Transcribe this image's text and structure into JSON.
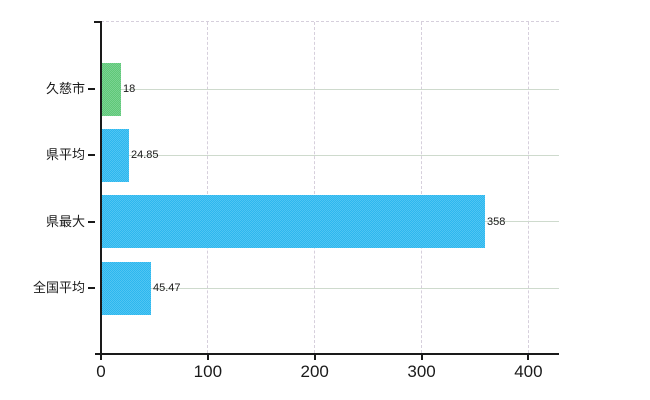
{
  "chart_data": {
    "type": "bar",
    "orientation": "horizontal",
    "title": "",
    "xlabel": "",
    "ylabel": "",
    "categories": [
      "久慈市",
      "県平均",
      "県最大",
      "全国平均"
    ],
    "values": [
      18,
      24.85,
      358,
      45.47
    ],
    "value_labels": [
      "18",
      "24.85",
      "358",
      "45.47"
    ],
    "bars": [
      {
        "category": "久慈市",
        "value": 18,
        "label": "18",
        "fill": "#5fc878",
        "fill_alt": "#7ad392"
      },
      {
        "category": "県平均",
        "value": 24.85,
        "label": "24.85",
        "fill": "#2db7ee",
        "fill_alt": "#50c5f3"
      },
      {
        "category": "県最大",
        "value": 358,
        "label": "358",
        "fill": "#2db7ee",
        "fill_alt": "#50c5f3"
      },
      {
        "category": "全国平均",
        "value": 45.47,
        "label": "45.47",
        "fill": "#2db7ee",
        "fill_alt": "#50c5f3"
      }
    ],
    "x_ticks": [
      0,
      100,
      200,
      300,
      400
    ],
    "xlim": [
      0,
      428
    ],
    "grid": true,
    "legend": false,
    "colors": {
      "green_bar": "#6ccd85",
      "blue_bar": "#3ebef0",
      "axis": "#1a1a1a",
      "text": "#1a1a1a",
      "hgrid": "#cedacd",
      "vgrid": "#d6cfdc",
      "background": "#ffffff"
    }
  }
}
